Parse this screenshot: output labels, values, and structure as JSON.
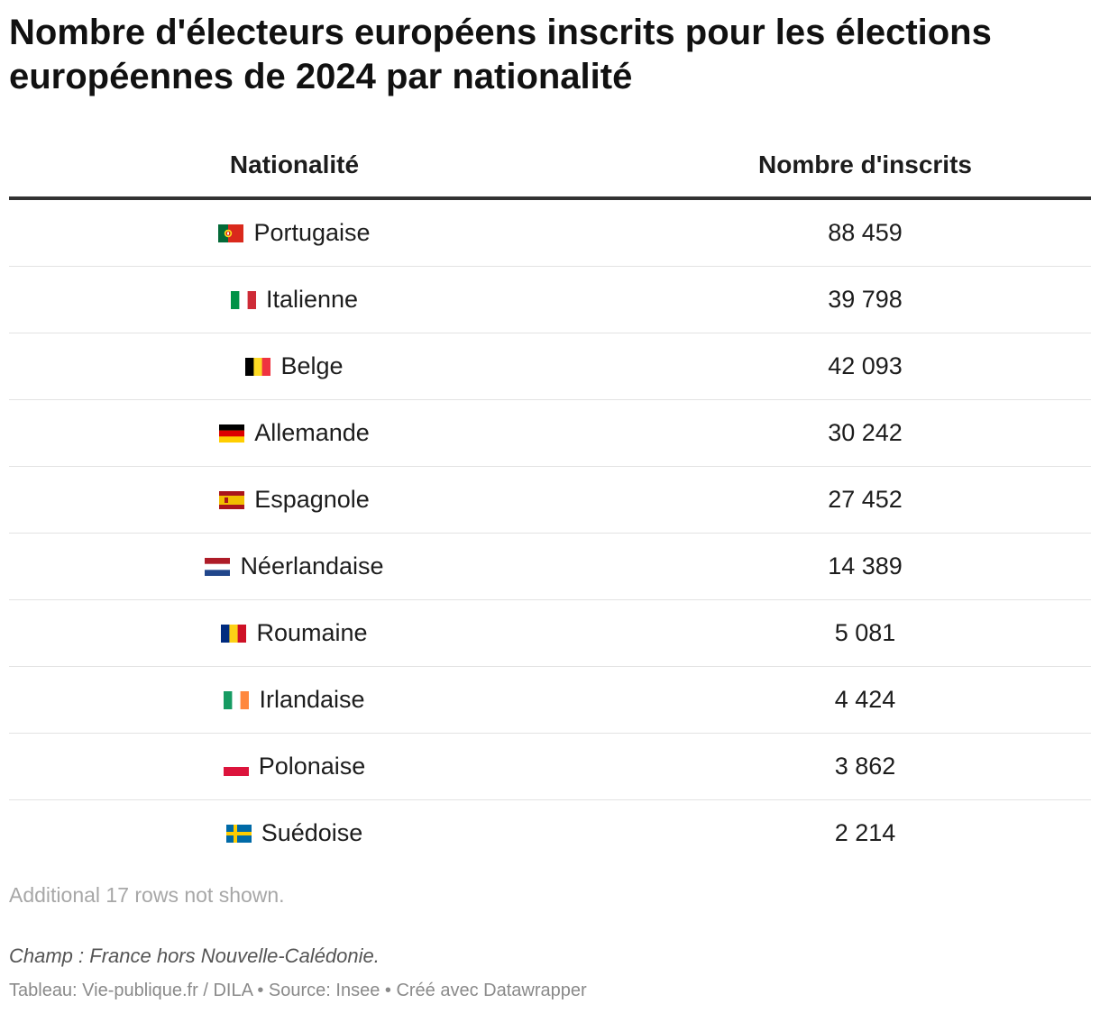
{
  "title": "Nombre d'électeurs européens inscrits pour les élections européennes de 2024 par nationalité",
  "headers": {
    "nationality": "Nationalité",
    "count": "Nombre d'inscrits"
  },
  "rows": [
    {
      "nationality": "Portugaise",
      "count": "88 459",
      "flag": "flag-portugal-icon"
    },
    {
      "nationality": "Italienne",
      "count": "39 798",
      "flag": "flag-italy-icon"
    },
    {
      "nationality": "Belge",
      "count": "42 093",
      "flag": "flag-belgium-icon"
    },
    {
      "nationality": "Allemande",
      "count": "30 242",
      "flag": "flag-germany-icon"
    },
    {
      "nationality": "Espagnole",
      "count": "27 452",
      "flag": "flag-spain-icon"
    },
    {
      "nationality": "Néerlandaise",
      "count": "14 389",
      "flag": "flag-netherlands-icon"
    },
    {
      "nationality": "Roumaine",
      "count": "5 081",
      "flag": "flag-romania-icon"
    },
    {
      "nationality": "Irlandaise",
      "count": "4 424",
      "flag": "flag-ireland-icon"
    },
    {
      "nationality": "Polonaise",
      "count": "3 862",
      "flag": "flag-poland-icon"
    },
    {
      "nationality": "Suédoise",
      "count": "2 214",
      "flag": "flag-sweden-icon"
    }
  ],
  "more_rows_note": "Additional 17 rows not shown.",
  "notes": "Champ : France hors Nouvelle-Calédonie.",
  "footer": "Tableau: Vie-publique.fr / DILA • Source: Insee • Créé avec Datawrapper",
  "chart_data": {
    "type": "table",
    "title": "Nombre d'électeurs européens inscrits pour les élections européennes de 2024 par nationalité",
    "columns": [
      "Nationalité",
      "Nombre d'inscrits"
    ],
    "categories": [
      "Portugaise",
      "Italienne",
      "Belge",
      "Allemande",
      "Espagnole",
      "Néerlandaise",
      "Roumaine",
      "Irlandaise",
      "Polonaise",
      "Suédoise"
    ],
    "values": [
      88459,
      39798,
      42093,
      30242,
      27452,
      14389,
      5081,
      4424,
      3862,
      2214
    ]
  }
}
